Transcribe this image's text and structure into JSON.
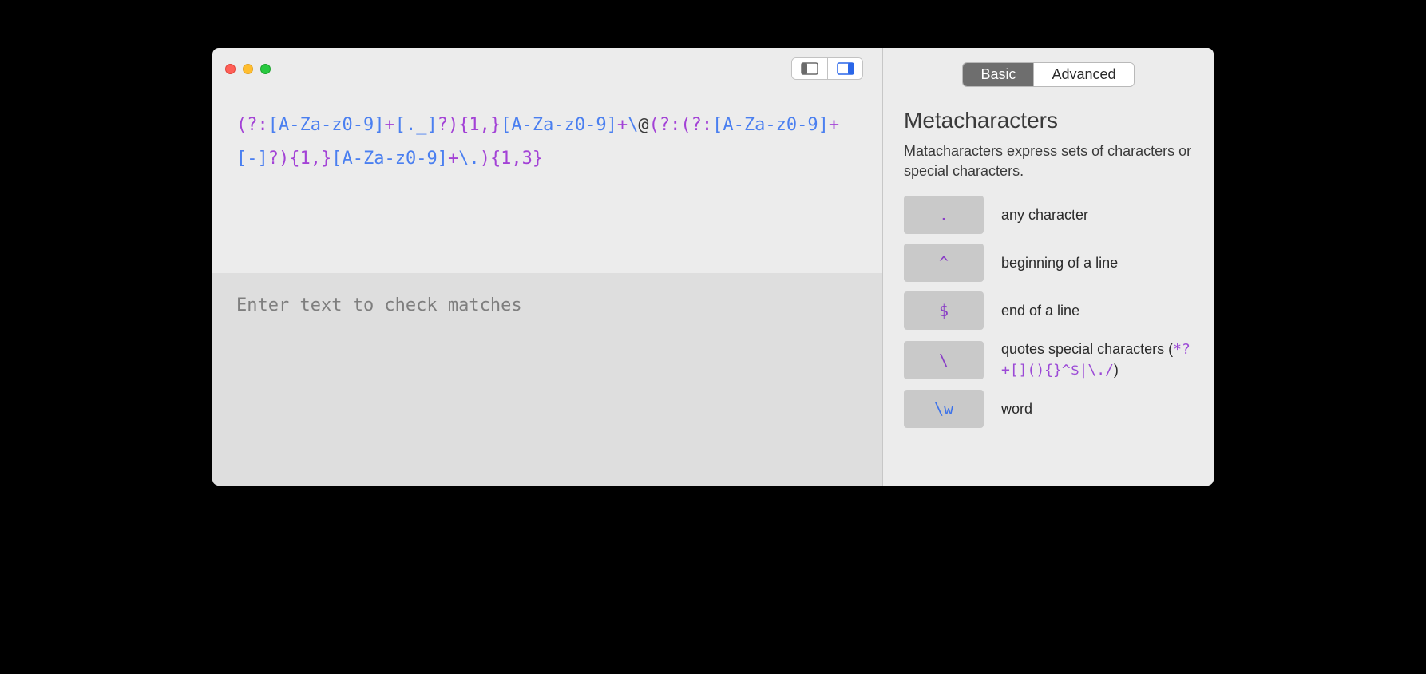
{
  "colors": {
    "window_bg": "#ececec",
    "test_bg": "#dedede",
    "divider": "#c7c7c7",
    "key_bg": "#c9c9c9",
    "seg_active_bg": "#6e6e6e",
    "seg_active_fg": "#ffffff",
    "purple": "#a342d6",
    "blue": "#4a7ff0",
    "black": "#3a3a3a",
    "placeholder": "#7e7e7e",
    "tl_close": "#ff5f57",
    "tl_min": "#ffbd2e",
    "tl_max": "#28c940"
  },
  "regex": {
    "tokens": [
      {
        "t": "(",
        "c": "purple"
      },
      {
        "t": "?:",
        "c": "purple"
      },
      {
        "t": "[A-Za-z0-9]",
        "c": "blue"
      },
      {
        "t": "+",
        "c": "purple"
      },
      {
        "t": "[._]",
        "c": "blue"
      },
      {
        "t": "?",
        "c": "purple"
      },
      {
        "t": ")",
        "c": "purple"
      },
      {
        "t": "{1,}",
        "c": "purple"
      },
      {
        "t": "[A-Za-z0-9]",
        "c": "blue"
      },
      {
        "t": "+",
        "c": "purple"
      },
      {
        "t": "\\",
        "c": "blue"
      },
      {
        "t": "@",
        "c": "black"
      },
      {
        "t": "(",
        "c": "purple"
      },
      {
        "t": "?:",
        "c": "purple"
      },
      {
        "t": "(",
        "c": "purple"
      },
      {
        "t": "?:",
        "c": "purple"
      },
      {
        "t": "[A-Za-z0-9]",
        "c": "blue"
      },
      {
        "t": "+",
        "c": "purple"
      },
      {
        "t": "[-]",
        "c": "blue"
      },
      {
        "t": "?",
        "c": "purple"
      },
      {
        "t": ")",
        "c": "purple"
      },
      {
        "t": "{1,}",
        "c": "purple"
      },
      {
        "t": "[A-Za-z0-9]",
        "c": "blue"
      },
      {
        "t": "+",
        "c": "purple"
      },
      {
        "t": "\\.",
        "c": "blue"
      },
      {
        "t": ")",
        "c": "purple"
      },
      {
        "t": "{1,3}",
        "c": "purple"
      }
    ]
  },
  "test_area": {
    "placeholder": "Enter text to check matches"
  },
  "tabs": {
    "basic": "Basic",
    "advanced": "Advanced",
    "active": "basic"
  },
  "reference": {
    "title": "Metacharacters",
    "description": "Matacharacters express sets of characters or special characters.",
    "items": [
      {
        "symbol": ".",
        "symbol_color": "purple",
        "desc": "any character",
        "example": null
      },
      {
        "symbol": "^",
        "symbol_color": "purple",
        "desc": "beginning of a line",
        "example": null
      },
      {
        "symbol": "$",
        "symbol_color": "purple",
        "desc": "end of a line",
        "example": null
      },
      {
        "symbol": "\\",
        "symbol_color": "purple",
        "desc": "quotes special characters (",
        "example": "*?+[](){}^$|\\./",
        "desc_after": ")"
      },
      {
        "symbol": "\\w",
        "symbol_color": "blue",
        "desc": "word",
        "example": null
      }
    ]
  }
}
